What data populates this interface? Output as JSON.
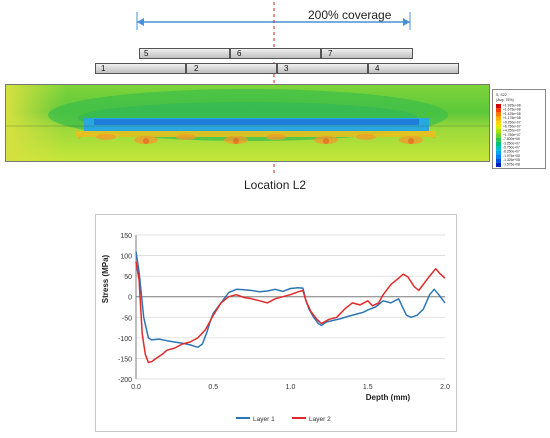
{
  "top": {
    "coverage_label": "200% coverage",
    "location_label": "Location L2",
    "lanes_row1": [
      "5",
      "6",
      "7"
    ],
    "lanes_row2": [
      "1",
      "2",
      "3",
      "4"
    ],
    "legend": {
      "title_lines": [
        "S, S22",
        "(Avg: 75%)"
      ],
      "value_lines": [
        "+1.925e+08",
        "+1.675e+08",
        "+1.425e+08",
        "+1.175e+08",
        "+9.250e+07",
        "+6.750e+07",
        "+4.250e+07",
        "+1.750e+07",
        "-7.500e+06",
        "-3.250e+07",
        "-5.750e+07",
        "-8.250e+07",
        "-1.075e+08",
        "-1.325e+08",
        "-1.575e+08"
      ],
      "colors": [
        "#d50000",
        "#ff3d00",
        "#ff7a00",
        "#ffb000",
        "#ffd600",
        "#d6ef00",
        "#a8e000",
        "#6fd22a",
        "#30c84a",
        "#00c080",
        "#00c4c4",
        "#00a8e8",
        "#0082f0",
        "#0050e0",
        "#0020c0"
      ]
    }
  },
  "chart_data": {
    "type": "line",
    "xlabel": "Depth (mm)",
    "ylabel": "Stress (MPa)",
    "xlim": [
      0.0,
      2.0
    ],
    "ylim": [
      -200,
      150
    ],
    "xticks": [
      "0.0",
      "0.5",
      "1.0",
      "1.5",
      "2.0"
    ],
    "yticks": [
      "-200",
      "-150",
      "-100",
      "-50",
      "0",
      "50",
      "100",
      "150"
    ],
    "legend_position": "bottom",
    "grid": true,
    "series": [
      {
        "name": "Layer 1",
        "color": "#2e75b6",
        "points": [
          [
            0.0,
            110
          ],
          [
            0.02,
            60
          ],
          [
            0.05,
            -50
          ],
          [
            0.08,
            -100
          ],
          [
            0.1,
            -105
          ],
          [
            0.15,
            -103
          ],
          [
            0.2,
            -107
          ],
          [
            0.25,
            -110
          ],
          [
            0.3,
            -113
          ],
          [
            0.35,
            -117
          ],
          [
            0.4,
            -123
          ],
          [
            0.43,
            -115
          ],
          [
            0.46,
            -85
          ],
          [
            0.48,
            -60
          ],
          [
            0.5,
            -40
          ],
          [
            0.55,
            -15
          ],
          [
            0.6,
            10
          ],
          [
            0.65,
            18
          ],
          [
            0.7,
            17
          ],
          [
            0.75,
            15
          ],
          [
            0.8,
            12
          ],
          [
            0.85,
            14
          ],
          [
            0.9,
            18
          ],
          [
            0.95,
            13
          ],
          [
            1.0,
            20
          ],
          [
            1.05,
            22
          ],
          [
            1.08,
            21
          ],
          [
            1.1,
            -10
          ],
          [
            1.12,
            -30
          ],
          [
            1.15,
            -50
          ],
          [
            1.18,
            -65
          ],
          [
            1.2,
            -70
          ],
          [
            1.23,
            -62
          ],
          [
            1.27,
            -58
          ],
          [
            1.32,
            -54
          ],
          [
            1.37,
            -48
          ],
          [
            1.42,
            -43
          ],
          [
            1.47,
            -38
          ],
          [
            1.5,
            -32
          ],
          [
            1.55,
            -25
          ],
          [
            1.6,
            -10
          ],
          [
            1.65,
            -15
          ],
          [
            1.7,
            -5
          ],
          [
            1.75,
            -45
          ],
          [
            1.78,
            -50
          ],
          [
            1.82,
            -45
          ],
          [
            1.86,
            -30
          ],
          [
            1.9,
            5
          ],
          [
            1.93,
            18
          ],
          [
            1.96,
            5
          ],
          [
            2.0,
            -15
          ]
        ]
      },
      {
        "name": "Layer 2",
        "color": "#e02a2a",
        "points": [
          [
            0.0,
            85
          ],
          [
            0.02,
            40
          ],
          [
            0.04,
            -90
          ],
          [
            0.06,
            -140
          ],
          [
            0.08,
            -160
          ],
          [
            0.1,
            -158
          ],
          [
            0.13,
            -150
          ],
          [
            0.17,
            -140
          ],
          [
            0.2,
            -130
          ],
          [
            0.25,
            -125
          ],
          [
            0.3,
            -115
          ],
          [
            0.35,
            -110
          ],
          [
            0.4,
            -100
          ],
          [
            0.45,
            -80
          ],
          [
            0.5,
            -45
          ],
          [
            0.55,
            -15
          ],
          [
            0.6,
            0
          ],
          [
            0.65,
            5
          ],
          [
            0.7,
            -2
          ],
          [
            0.75,
            -5
          ],
          [
            0.8,
            -10
          ],
          [
            0.85,
            -15
          ],
          [
            0.9,
            -5
          ],
          [
            0.95,
            0
          ],
          [
            1.0,
            5
          ],
          [
            1.05,
            12
          ],
          [
            1.08,
            15
          ],
          [
            1.1,
            -10
          ],
          [
            1.13,
            -35
          ],
          [
            1.17,
            -55
          ],
          [
            1.2,
            -65
          ],
          [
            1.25,
            -55
          ],
          [
            1.3,
            -50
          ],
          [
            1.35,
            -30
          ],
          [
            1.4,
            -15
          ],
          [
            1.45,
            -20
          ],
          [
            1.5,
            -10
          ],
          [
            1.53,
            -22
          ],
          [
            1.57,
            -15
          ],
          [
            1.6,
            5
          ],
          [
            1.65,
            30
          ],
          [
            1.7,
            45
          ],
          [
            1.73,
            55
          ],
          [
            1.76,
            48
          ],
          [
            1.8,
            25
          ],
          [
            1.83,
            15
          ],
          [
            1.87,
            35
          ],
          [
            1.9,
            50
          ],
          [
            1.94,
            68
          ],
          [
            1.97,
            55
          ],
          [
            2.0,
            45
          ]
        ]
      }
    ]
  }
}
